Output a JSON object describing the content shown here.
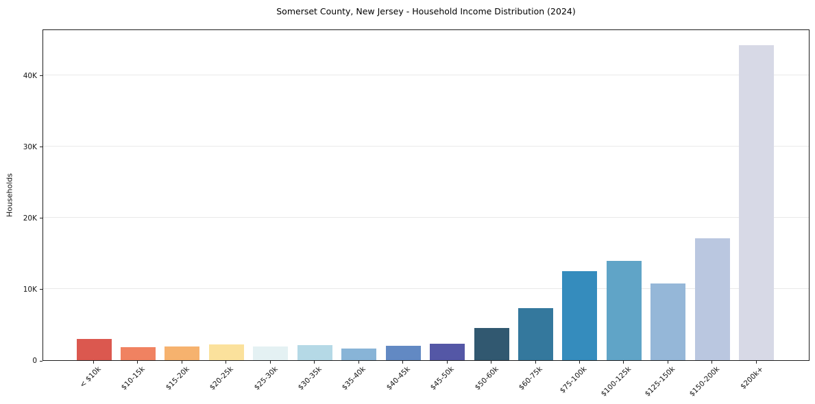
{
  "chart_data": {
    "type": "bar",
    "title": "Somerset County, New Jersey - Household Income Distribution (2024)",
    "xlabel": "",
    "ylabel": "Households",
    "categories": [
      "< $10k",
      "$10-15k",
      "$15-20k",
      "$20-25k",
      "$25-30k",
      "$30-35k",
      "$35-40k",
      "$40-45k",
      "$45-50k",
      "$50-60k",
      "$60-75k",
      "$75-100k",
      "$100-125k",
      "$125-150k",
      "$150-200k",
      "$200k+"
    ],
    "values": [
      3000,
      1800,
      1900,
      2250,
      1950,
      2100,
      1650,
      2050,
      2350,
      4550,
      7300,
      12450,
      13900,
      10750,
      17100,
      44200
    ],
    "bar_colors": [
      "#db584f",
      "#f08261",
      "#f6b26e",
      "#fbe19c",
      "#e4f1f3",
      "#b5d9e6",
      "#88b4d7",
      "#6289c3",
      "#5457a6",
      "#315870",
      "#34789d",
      "#358cbd",
      "#60a4c7",
      "#95b7d8",
      "#bac7e0",
      "#d7d9e6"
    ],
    "ylim": [
      0,
      46500
    ],
    "yticks": [
      {
        "value": 0,
        "label": "0"
      },
      {
        "value": 10000,
        "label": "10K"
      },
      {
        "value": 20000,
        "label": "20K"
      },
      {
        "value": 30000,
        "label": "30K"
      },
      {
        "value": 40000,
        "label": "40K"
      }
    ],
    "grid": "horizontal",
    "grid_color": "#e9e9e9",
    "axis_color": "#1c1c1c",
    "background_color": "#ffffff",
    "legend": "none",
    "x_tick_rotation_deg": 45
  }
}
